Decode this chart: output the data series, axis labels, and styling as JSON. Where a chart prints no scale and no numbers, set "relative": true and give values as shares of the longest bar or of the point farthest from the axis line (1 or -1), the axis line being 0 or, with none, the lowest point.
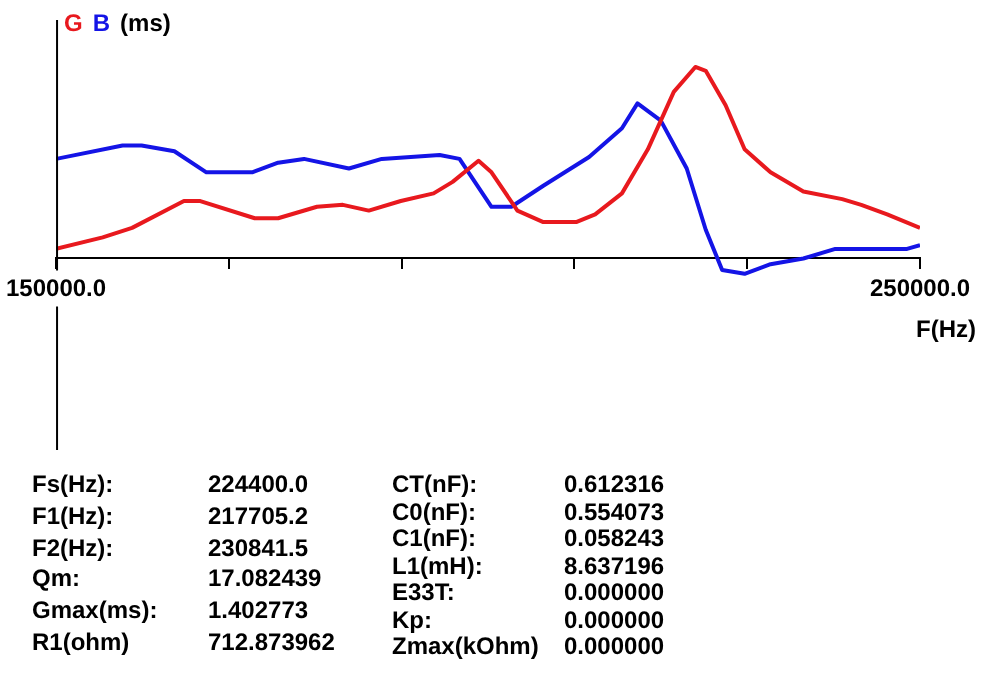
{
  "chart_data": {
    "type": "line",
    "relative": true,
    "ylabel": "(ms)",
    "xlabel": "F(Hz)",
    "legend": "top left",
    "grid": false,
    "marker": "none",
    "line_style": "solid",
    "xlim": [
      150000,
      250000
    ],
    "xticks": [
      {
        "value": 150000,
        "label": "150000.0"
      },
      {
        "value": 170000,
        "label": null
      },
      {
        "value": 190000,
        "label": null
      },
      {
        "value": 210000,
        "label": null
      },
      {
        "value": 230000,
        "label": null
      },
      {
        "value": 250000,
        "label": "250000.0"
      }
    ],
    "series": [
      {
        "name": "G",
        "color": "#e8191e",
        "x": [
          150000,
          155400,
          158800,
          164800,
          166700,
          173000,
          175700,
          180200,
          183200,
          186200,
          189900,
          193700,
          195900,
          198900,
          200400,
          203400,
          206400,
          210200,
          212400,
          215500,
          218500,
          221500,
          224000,
          225200,
          227500,
          229700,
          232700,
          236500,
          241000,
          243200,
          246200,
          250000
        ],
        "values": [
          0.05,
          0.11,
          0.16,
          0.3,
          0.3,
          0.21,
          0.21,
          0.27,
          0.28,
          0.25,
          0.3,
          0.34,
          0.4,
          0.51,
          0.45,
          0.25,
          0.19,
          0.19,
          0.23,
          0.34,
          0.57,
          0.87,
          1.0,
          0.98,
          0.8,
          0.57,
          0.45,
          0.35,
          0.31,
          0.28,
          0.23,
          0.16
        ]
      },
      {
        "name": "B",
        "color": "#1414e6",
        "x": [
          150000,
          157700,
          159900,
          163700,
          167400,
          172700,
          175700,
          178700,
          183900,
          187700,
          194400,
          196700,
          200400,
          202700,
          206400,
          211700,
          215500,
          217300,
          220000,
          223000,
          225200,
          227100,
          229700,
          232700,
          236500,
          240200,
          244000,
          248500,
          250000
        ],
        "values": [
          0.52,
          0.59,
          0.59,
          0.56,
          0.45,
          0.45,
          0.5,
          0.52,
          0.47,
          0.52,
          0.54,
          0.52,
          0.27,
          0.27,
          0.38,
          0.53,
          0.68,
          0.81,
          0.72,
          0.47,
          0.15,
          -0.06,
          -0.08,
          -0.03,
          0.0,
          0.05,
          0.05,
          0.05,
          0.07
        ]
      }
    ],
    "annotations": [
      "Fs(Hz):",
      "224400.0",
      "F1(Hz):",
      "217705.2",
      "F2(Hz):",
      "230841.5",
      "Qm:",
      "17.082439",
      "Gmax(ms):",
      "1.402773",
      "R1(ohm)",
      "712.873962",
      "CT(nF):",
      "0.612316",
      "C0(nF):",
      "0.554073",
      "C1(nF):",
      "0.058243",
      "L1(mH):",
      "8.637196",
      "E33T:",
      "0.000000",
      "Kp:",
      "0.000000",
      "Zmax(kOhm)",
      "0.000000"
    ]
  }
}
